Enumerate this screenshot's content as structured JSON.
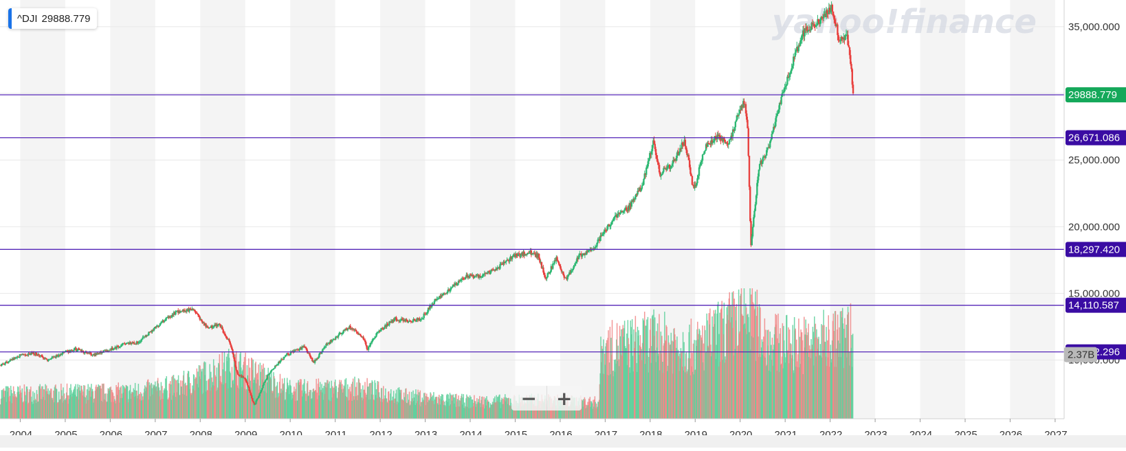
{
  "legend": {
    "symbol": "^DJI",
    "value": "29888.779",
    "accent_color": "#1a73e8"
  },
  "watermark": "yahoo!finance",
  "zoom": {
    "minus_label": "−",
    "plus_label": "+"
  },
  "colors": {
    "up": "#2eb873",
    "down": "#e8403e",
    "volume_up": "#5ccf9a",
    "volume_down": "#f08585",
    "level_line": "#5526b8",
    "level_label_bg": "#3a0ca3",
    "last_price_bg": "#14a85a",
    "year_band": "#f4f4f4",
    "grid": "#e8e8e8",
    "volume_label_bg": "#b9b9b9"
  },
  "chart_data": {
    "type": "candlestick",
    "series_name": "^DJI",
    "x_range": [
      2003.55,
      2027.2
    ],
    "ylim": [
      5600,
      37000
    ],
    "x_ticks": [
      "2004",
      "2005",
      "2006",
      "2007",
      "2008",
      "2009",
      "2010",
      "2011",
      "2012",
      "2013",
      "2014",
      "2015",
      "2016",
      "2017",
      "2018",
      "2019",
      "2020",
      "2021",
      "2022",
      "2023",
      "2024",
      "2025",
      "2026",
      "2027"
    ],
    "y_ticks": [
      {
        "value": 10000,
        "label": "10,000.000"
      },
      {
        "value": 15000,
        "label": "15,000.000"
      },
      {
        "value": 20000,
        "label": "20,000.000"
      },
      {
        "value": 25000,
        "label": "25,000.000"
      },
      {
        "value": 30000,
        "label": "30,000.000"
      },
      {
        "value": 35000,
        "label": "35,000.000"
      }
    ],
    "price_levels": [
      {
        "value": 29888.779,
        "label": "29888.779",
        "kind": "last"
      },
      {
        "value": 26671.086,
        "label": "26,671.086",
        "kind": "level"
      },
      {
        "value": 18297.42,
        "label": "18,297.420",
        "kind": "level"
      },
      {
        "value": 14110.587,
        "label": "14,110.587",
        "kind": "level"
      },
      {
        "value": 10612.296,
        "label": "10,612.296",
        "kind": "level"
      }
    ],
    "volume_label": "2.37B",
    "price_keypoints": [
      [
        2003.55,
        9600
      ],
      [
        2004.0,
        10400
      ],
      [
        2004.3,
        10500
      ],
      [
        2004.6,
        10000
      ],
      [
        2004.9,
        10500
      ],
      [
        2005.2,
        10800
      ],
      [
        2005.6,
        10400
      ],
      [
        2005.9,
        10700
      ],
      [
        2006.3,
        11200
      ],
      [
        2006.6,
        11300
      ],
      [
        2007.0,
        12500
      ],
      [
        2007.45,
        13600
      ],
      [
        2007.8,
        13800
      ],
      [
        2008.15,
        12400
      ],
      [
        2008.4,
        12700
      ],
      [
        2008.65,
        11200
      ],
      [
        2008.8,
        9000
      ],
      [
        2009.0,
        8500
      ],
      [
        2009.18,
        6600
      ],
      [
        2009.5,
        9000
      ],
      [
        2009.9,
        10400
      ],
      [
        2010.3,
        11000
      ],
      [
        2010.5,
        9800
      ],
      [
        2010.8,
        11200
      ],
      [
        2011.3,
        12500
      ],
      [
        2011.6,
        11700
      ],
      [
        2011.7,
        10800
      ],
      [
        2011.9,
        12000
      ],
      [
        2012.3,
        13100
      ],
      [
        2012.6,
        12900
      ],
      [
        2012.9,
        13100
      ],
      [
        2013.2,
        14500
      ],
      [
        2013.6,
        15500
      ],
      [
        2013.9,
        16300
      ],
      [
        2014.2,
        16300
      ],
      [
        2014.6,
        16900
      ],
      [
        2014.9,
        17700
      ],
      [
        2015.3,
        18100
      ],
      [
        2015.5,
        17800
      ],
      [
        2015.65,
        16100
      ],
      [
        2015.9,
        17600
      ],
      [
        2016.1,
        16000
      ],
      [
        2016.4,
        17800
      ],
      [
        2016.7,
        18200
      ],
      [
        2016.9,
        19300
      ],
      [
        2017.2,
        20700
      ],
      [
        2017.5,
        21400
      ],
      [
        2017.8,
        23000
      ],
      [
        2018.05,
        26400
      ],
      [
        2018.2,
        24000
      ],
      [
        2018.5,
        24800
      ],
      [
        2018.75,
        26500
      ],
      [
        2018.95,
        22700
      ],
      [
        2019.2,
        25900
      ],
      [
        2019.5,
        26900
      ],
      [
        2019.7,
        26100
      ],
      [
        2019.95,
        28400
      ],
      [
        2020.08,
        29400
      ],
      [
        2020.15,
        27000
      ],
      [
        2020.22,
        18600
      ],
      [
        2020.4,
        24500
      ],
      [
        2020.6,
        25800
      ],
      [
        2020.8,
        28300
      ],
      [
        2020.95,
        30300
      ],
      [
        2021.2,
        32800
      ],
      [
        2021.4,
        34600
      ],
      [
        2021.7,
        35200
      ],
      [
        2021.9,
        35900
      ],
      [
        2022.0,
        36600
      ],
      [
        2022.2,
        33800
      ],
      [
        2022.35,
        34600
      ],
      [
        2022.45,
        31800
      ],
      [
        2022.5,
        29888.779
      ]
    ],
    "volume_keypoints": [
      [
        2003.55,
        1.2
      ],
      [
        2006.5,
        1.3
      ],
      [
        2007.5,
        1.6
      ],
      [
        2008.7,
        2.6
      ],
      [
        2009.2,
        2.2
      ],
      [
        2010.0,
        1.4
      ],
      [
        2011.6,
        1.5
      ],
      [
        2012.5,
        1.1
      ],
      [
        2014.0,
        0.85
      ],
      [
        2015.5,
        0.9
      ],
      [
        2016.85,
        0.8
      ],
      [
        2016.9,
        3.4
      ],
      [
        2018.1,
        3.9
      ],
      [
        2019.0,
        3.5
      ],
      [
        2020.2,
        5.2
      ],
      [
        2020.6,
        3.8
      ],
      [
        2021.5,
        3.7
      ],
      [
        2022.5,
        4.2
      ]
    ],
    "volume_max": 6.0
  }
}
